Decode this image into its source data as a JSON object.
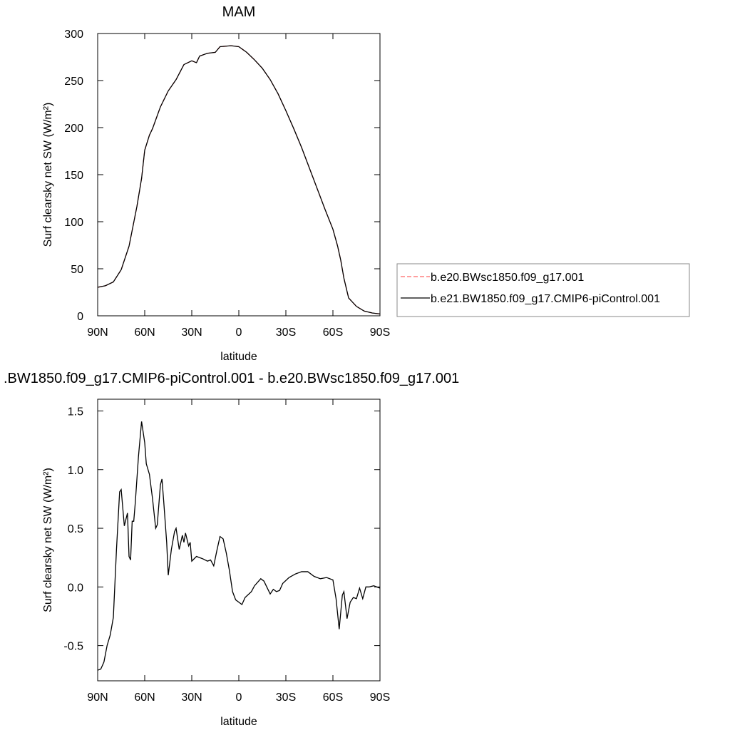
{
  "chart_data": [
    {
      "type": "line",
      "title": "MAM",
      "xlabel": "latitude",
      "ylabel": "Surf clearsky net SW (W/m²)",
      "x": [
        90,
        85,
        80,
        75,
        70,
        65,
        62,
        60,
        57,
        55,
        50,
        45,
        40,
        35,
        30,
        27,
        25,
        20,
        15,
        12,
        5,
        0,
        -5,
        -10,
        -15,
        -20,
        -25,
        -30,
        -35,
        -40,
        -45,
        -50,
        -55,
        -60,
        -63,
        -65,
        -67,
        -70,
        -75,
        -80,
        -85,
        -90
      ],
      "series": [
        {
          "name": "b.e20.BWsc1850.f09_g17.001",
          "color": "#ff6666",
          "dash": true,
          "values": [
            30.3,
            32,
            36,
            49,
            74,
            116,
            146,
            176,
            192,
            199,
            222,
            239,
            251,
            267,
            271,
            269,
            276,
            279,
            280,
            286,
            287,
            286,
            280,
            272,
            263,
            251,
            236,
            218,
            199,
            179,
            157,
            135,
            113,
            92,
            74,
            59,
            40,
            19,
            10,
            5,
            3,
            2
          ]
        },
        {
          "name": "b.e21.BW1850.f09_g17.CMIP6-piControl.001",
          "color": "#000000",
          "dash": false,
          "values": [
            30.3,
            32,
            36,
            49,
            74,
            116,
            146,
            176,
            192,
            199,
            222,
            239,
            251,
            267,
            271,
            269,
            276,
            279,
            280,
            286,
            287,
            286,
            280,
            272,
            263,
            251,
            236,
            218,
            199,
            179,
            157,
            135,
            113,
            92,
            74,
            59,
            40,
            19,
            10,
            5,
            3,
            2
          ]
        }
      ],
      "xlim": [
        90,
        -90
      ],
      "xticks": [
        {
          "value": 90,
          "label": "90N"
        },
        {
          "value": 60,
          "label": "60N"
        },
        {
          "value": 30,
          "label": "30N"
        },
        0,
        {
          "value": -30,
          "label": "30S"
        },
        {
          "value": -60,
          "label": "60S"
        },
        {
          "value": -90,
          "label": "90S"
        }
      ],
      "ylim": [
        0,
        300
      ],
      "yticks": [
        0,
        50,
        100,
        150,
        200,
        250,
        300
      ],
      "legend": "right"
    },
    {
      "type": "line",
      "title": ".BW1850.f09_g17.CMIP6-piControl.001 - b.e20.BWsc1850.f09_g17.001",
      "xlabel": "latitude",
      "ylabel": "Surf clearsky net SW (W/m²)",
      "x": [
        90,
        88,
        86,
        84,
        82,
        80,
        78,
        76,
        75,
        73,
        71,
        70,
        69,
        68,
        67,
        66,
        64,
        62,
        60,
        59,
        57,
        55,
        53,
        52,
        50,
        49,
        48,
        46,
        45,
        43,
        41,
        40,
        38,
        36,
        35,
        34,
        32,
        31,
        30,
        27,
        23,
        20,
        18,
        16,
        14,
        12,
        10,
        8,
        6,
        4,
        2,
        0,
        -2,
        -4,
        -8,
        -10,
        -14,
        -16,
        -20,
        -22,
        -24,
        -26,
        -28,
        -32,
        -36,
        -40,
        -44,
        -48,
        -52,
        -56,
        -60,
        -62,
        -64,
        -66,
        -67,
        -69,
        -71,
        -73,
        -75,
        -77,
        -79,
        -81,
        -83,
        -86,
        -88,
        -90
      ],
      "values": [
        -0.71,
        -0.7,
        -0.64,
        -0.5,
        -0.41,
        -0.26,
        0.32,
        0.81,
        0.83,
        0.52,
        0.63,
        0.26,
        0.23,
        0.56,
        0.56,
        0.72,
        1.11,
        1.41,
        1.23,
        1.05,
        0.96,
        0.75,
        0.5,
        0.53,
        0.87,
        0.92,
        0.75,
        0.38,
        0.1,
        0.32,
        0.47,
        0.5,
        0.32,
        0.44,
        0.38,
        0.46,
        0.35,
        0.38,
        0.22,
        0.26,
        0.24,
        0.22,
        0.23,
        0.18,
        0.31,
        0.43,
        0.41,
        0.29,
        0.14,
        -0.04,
        -0.11,
        -0.13,
        -0.15,
        -0.09,
        -0.04,
        0.01,
        0.07,
        0.05,
        -0.06,
        -0.02,
        -0.04,
        -0.03,
        0.03,
        0.08,
        0.11,
        0.13,
        0.13,
        0.09,
        0.07,
        0.08,
        0.06,
        -0.1,
        -0.36,
        -0.07,
        -0.04,
        -0.27,
        -0.13,
        -0.09,
        -0.1,
        -0.01,
        -0.1,
        0,
        0,
        0.01,
        0,
        -0.01
      ],
      "color": "#000000",
      "xlim": [
        90,
        -90
      ],
      "xticks": [
        {
          "value": 90,
          "label": "90N"
        },
        {
          "value": 60,
          "label": "60N"
        },
        {
          "value": 30,
          "label": "30N"
        },
        0,
        {
          "value": -30,
          "label": "30S"
        },
        {
          "value": -60,
          "label": "60S"
        },
        {
          "value": -90,
          "label": "90S"
        }
      ],
      "ylim": [
        -0.8,
        1.6
      ],
      "yticks": [
        -0.5,
        {
          "value": 0,
          "label": "0.0"
        },
        0.5,
        {
          "value": 1,
          "label": "1.0"
        },
        1.5
      ]
    }
  ]
}
